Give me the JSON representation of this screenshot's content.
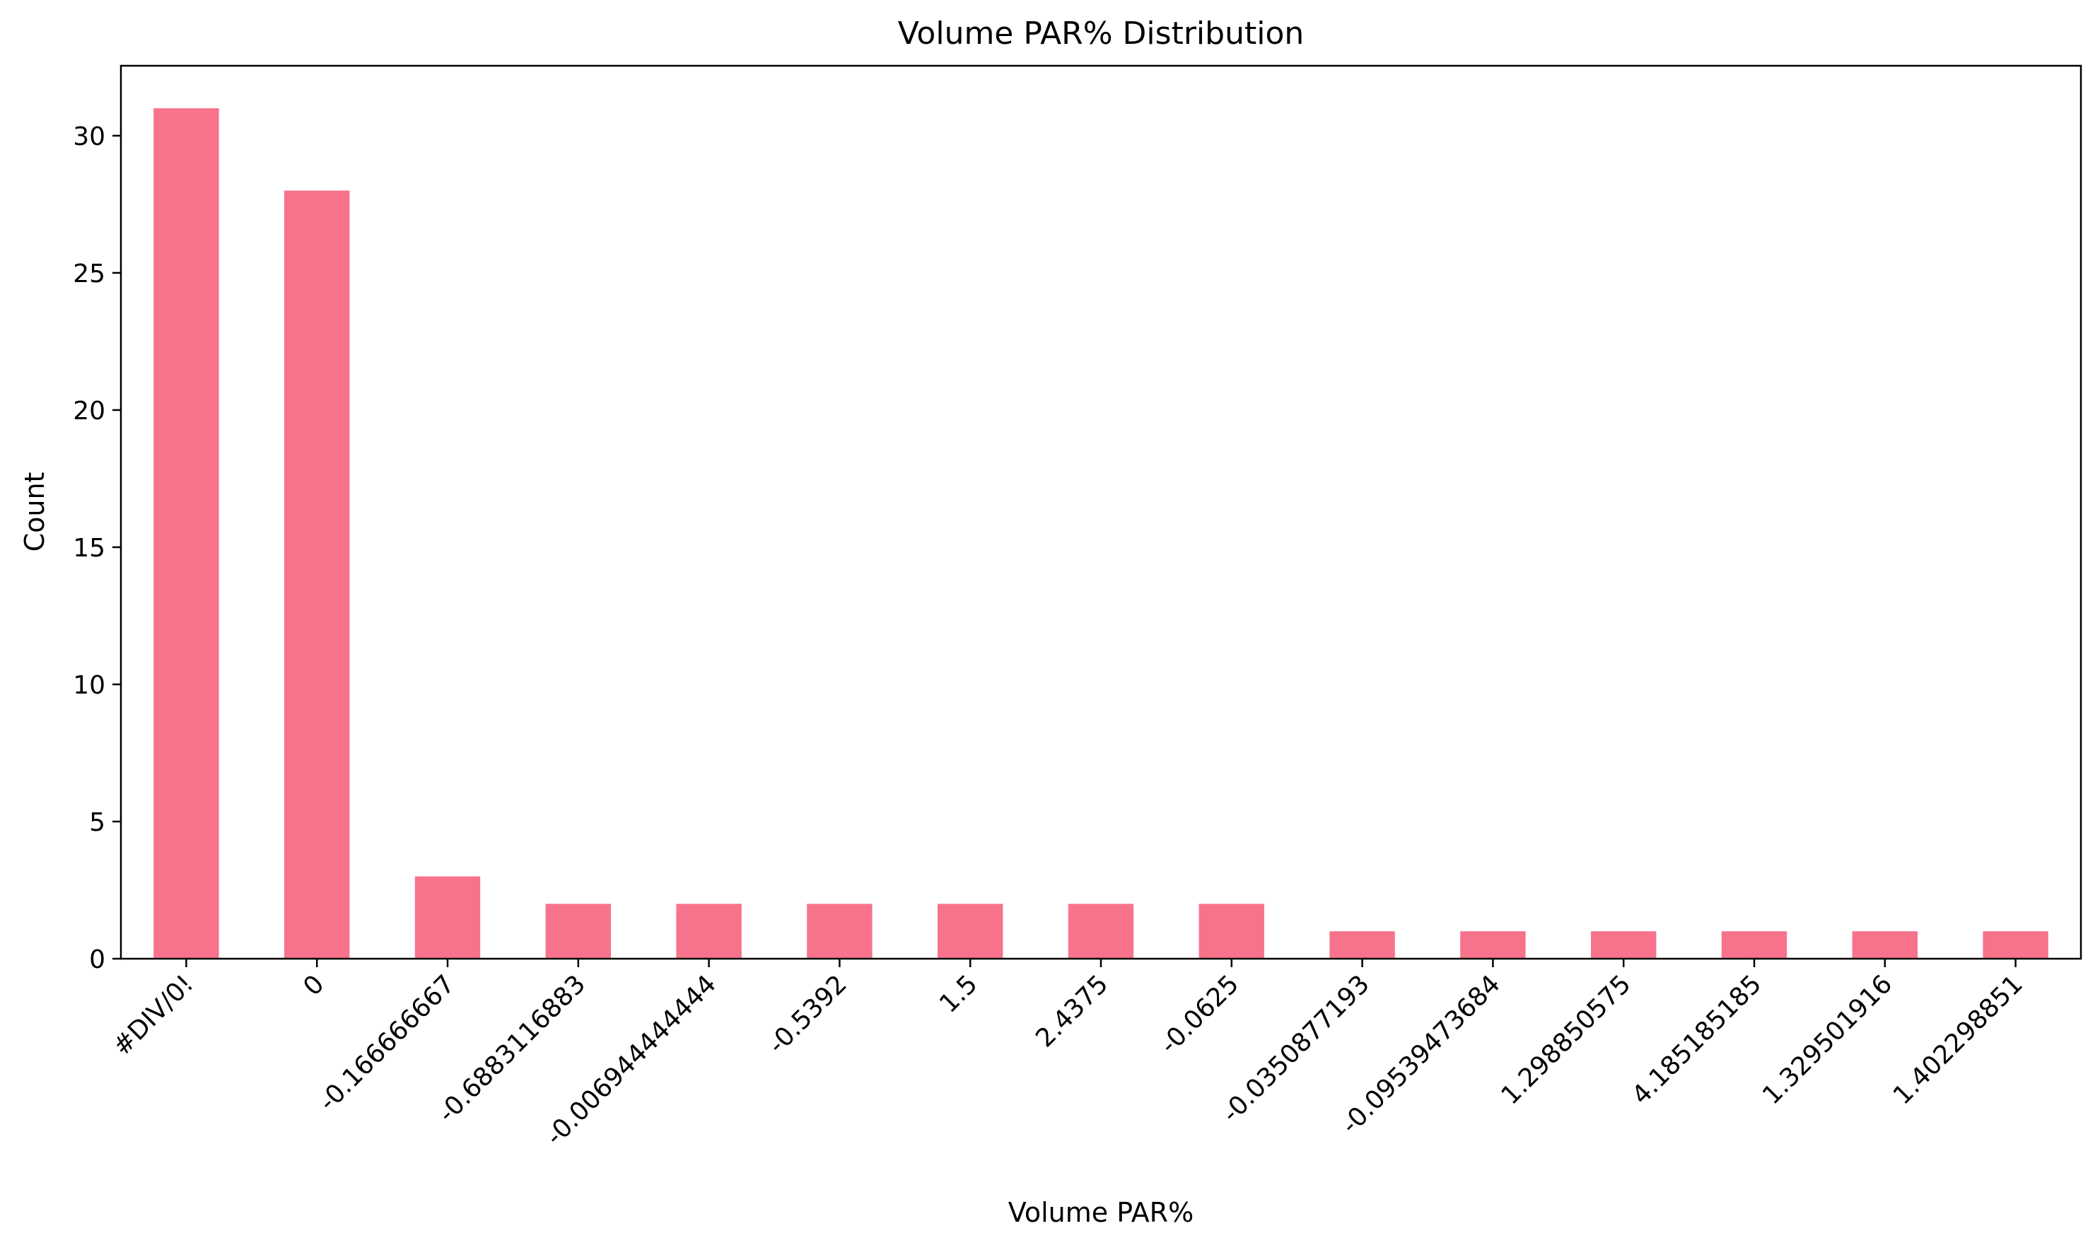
{
  "chart_data": {
    "type": "bar",
    "title": "Volume PAR% Distribution",
    "xlabel": "Volume PAR%",
    "ylabel": "Count",
    "categories": [
      "#DIV/0!",
      "0",
      "-0.166666667",
      "-0.6883116883",
      "-0.006944444444",
      "-0.5392",
      "1.5",
      "2.4375",
      "-0.0625",
      "-0.0350877193",
      "-0.09539473684",
      "1.298850575",
      "4.185185185",
      "1.329501916",
      "1.402298851"
    ],
    "values": [
      31,
      28,
      3,
      2,
      2,
      2,
      2,
      2,
      2,
      1,
      1,
      1,
      1,
      1,
      1
    ],
    "ylim": [
      0,
      32.55
    ],
    "yticks": [
      0,
      5,
      10,
      15,
      20,
      25,
      30
    ],
    "grid": false,
    "legend": "none",
    "bar_color": "#f7738b"
  }
}
